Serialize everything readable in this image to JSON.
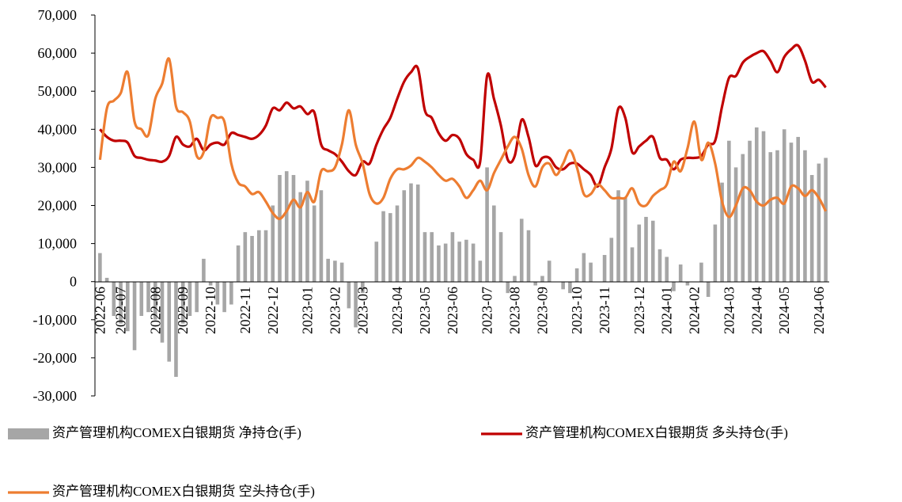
{
  "chart_data": {
    "type": "combo",
    "categories": [
      "2022-06",
      null,
      null,
      "2022-07",
      null,
      null,
      null,
      null,
      "2022-08",
      null,
      null,
      null,
      "2022-09",
      null,
      null,
      null,
      "2022-10",
      null,
      null,
      null,
      null,
      "2022-11",
      null,
      null,
      null,
      "2022-12",
      null,
      null,
      null,
      null,
      "2023-01",
      null,
      null,
      null,
      "2023-02",
      null,
      null,
      null,
      "2023-03",
      null,
      null,
      null,
      null,
      "2023-04",
      null,
      null,
      null,
      "2023-05",
      null,
      null,
      null,
      "2023-06",
      null,
      null,
      null,
      null,
      "2023-07",
      null,
      null,
      null,
      "2023-08",
      null,
      null,
      null,
      "2023-09",
      null,
      null,
      null,
      null,
      "2023-10",
      null,
      null,
      null,
      "2023-11",
      null,
      null,
      null,
      null,
      "2023-12",
      null,
      null,
      null,
      "2024-01",
      null,
      null,
      null,
      "2024-02",
      null,
      null,
      null,
      null,
      "2024-03",
      null,
      null,
      null,
      "2024-04",
      null,
      null,
      null,
      "2024-05",
      null,
      null,
      null,
      null,
      "2024-06",
      null
    ],
    "series": [
      {
        "name": "资产管理机构COMEX白银期货 净持仓(手)",
        "type": "bar",
        "color": "#a6a6a6",
        "values": [
          7500,
          1000,
          -9000,
          -11000,
          -13000,
          -18000,
          -9000,
          -8000,
          -10000,
          -16000,
          -21000,
          -25000,
          -11000,
          -9000,
          -8000,
          6000,
          -1000,
          -6000,
          -8000,
          -6000,
          9500,
          13000,
          12000,
          13500,
          13500,
          20000,
          28000,
          29000,
          28000,
          23500,
          26500,
          20000,
          24000,
          6000,
          5500,
          5000,
          -7000,
          -12000,
          -3000,
          0,
          10500,
          18500,
          18000,
          20000,
          24000,
          25800,
          25500,
          13000,
          13000,
          9500,
          10000,
          13000,
          10500,
          11000,
          10000,
          5500,
          30000,
          20000,
          13000,
          -3000,
          1500,
          16500,
          13500,
          -1000,
          1500,
          5500,
          0,
          -2000,
          -3000,
          3500,
          7500,
          5000,
          0,
          7000,
          11500,
          24000,
          22000,
          9000,
          15000,
          17000,
          16000,
          8500,
          6500,
          -2500,
          4500,
          -1000,
          0,
          5000,
          -4000,
          15000,
          26000,
          37000,
          30000,
          33500,
          37000,
          40500,
          39500,
          34000,
          34500,
          40000,
          36500,
          38000,
          34500,
          28000,
          31000,
          32500
        ]
      },
      {
        "name": "资产管理机构COMEX白银期货 多头持仓(手)",
        "type": "line",
        "color": "#c00000",
        "values": [
          40000,
          38000,
          37000,
          37000,
          36500,
          33000,
          32500,
          32000,
          31800,
          31500,
          33000,
          38000,
          36000,
          35500,
          37500,
          34500,
          36000,
          36500,
          36000,
          39000,
          38500,
          38000,
          37500,
          38500,
          41000,
          45500,
          45000,
          47000,
          45500,
          46000,
          44000,
          44500,
          36000,
          34500,
          33500,
          31500,
          29000,
          28000,
          31500,
          31000,
          36000,
          40000,
          43000,
          48000,
          52500,
          55000,
          56000,
          45000,
          43000,
          39000,
          37000,
          38500,
          37500,
          33500,
          32000,
          31500,
          54000,
          48000,
          41000,
          32000,
          33000,
          42500,
          38000,
          30500,
          32500,
          32500,
          30000,
          29500,
          31000,
          31000,
          29500,
          28000,
          25000,
          30000,
          35000,
          45500,
          43000,
          34000,
          35500,
          37000,
          38000,
          32500,
          32000,
          29500,
          32000,
          32500,
          32500,
          33000,
          36000,
          37000,
          46000,
          53500,
          54000,
          57500,
          59000,
          60000,
          60500,
          58000,
          55000,
          59000,
          61000,
          62000,
          58000,
          52500,
          53000,
          51000
        ]
      },
      {
        "name": "资产管理机构COMEX白银期货 空头持仓(手)",
        "type": "line",
        "color": "#ed7d31",
        "values": [
          32000,
          45500,
          47500,
          49500,
          55000,
          42000,
          40000,
          38500,
          48000,
          52000,
          58500,
          46000,
          44500,
          42000,
          33000,
          34000,
          43000,
          43000,
          42000,
          31000,
          26000,
          25000,
          23000,
          23500,
          21000,
          18000,
          16500,
          18500,
          21500,
          19500,
          23500,
          21000,
          29000,
          29000,
          30000,
          36000,
          45000,
          36000,
          31000,
          23000,
          20500,
          22000,
          27000,
          29500,
          29500,
          30500,
          32500,
          31500,
          30000,
          28000,
          26500,
          27000,
          25000,
          22000,
          24000,
          26500,
          24000,
          28500,
          32000,
          35500,
          38000,
          35000,
          28000,
          25000,
          30000,
          31000,
          28000,
          31000,
          34500,
          30000,
          23000,
          23000,
          25500,
          24000,
          22000,
          22000,
          22000,
          24500,
          20500,
          20000,
          22500,
          24000,
          25500,
          31500,
          29000,
          35000,
          42000,
          32000,
          36500,
          31000,
          21000,
          17000,
          20000,
          24500,
          24000,
          21000,
          20000,
          21500,
          22000,
          20500,
          25000,
          24500,
          22500,
          24000,
          22000,
          18500
        ]
      }
    ],
    "ylim": [
      -30000,
      70000
    ],
    "yticks": [
      {
        "value": -30000,
        "label": "-30,000"
      },
      {
        "value": -20000,
        "label": "-20,000"
      },
      {
        "value": -10000,
        "label": "-10,000"
      },
      0,
      {
        "value": 10000,
        "label": "10,000"
      },
      {
        "value": 20000,
        "label": "20,000"
      },
      {
        "value": 30000,
        "label": "30,000"
      },
      {
        "value": 40000,
        "label": "40,000"
      },
      {
        "value": 50000,
        "label": "50,000"
      },
      {
        "value": 60000,
        "label": "60,000"
      },
      {
        "value": 70000,
        "label": "70,000"
      }
    ],
    "grid": false,
    "legend": "bottom"
  }
}
